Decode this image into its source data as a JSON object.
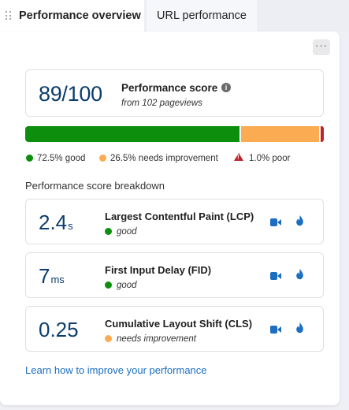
{
  "tabs": [
    {
      "label": "Performance overview",
      "active": true
    },
    {
      "label": "URL performance",
      "active": false
    }
  ],
  "more_label": "···",
  "score": {
    "value": "89/100",
    "title": "Performance score",
    "subtitle": "from 102 pageviews"
  },
  "distribution": {
    "good_pct": 72.5,
    "needs_improvement_pct": 26.5,
    "poor_pct": 1.0,
    "good_label": "72.5% good",
    "needs_improvement_label": "26.5% needs improvement",
    "poor_label": "1.0% poor"
  },
  "colors": {
    "good": "#0d8f0d",
    "needs_improvement": "#fbac52",
    "poor": "#c0222b",
    "value": "#0b3d6e",
    "link": "#1b6ec2"
  },
  "breakdown_title": "Performance score breakdown",
  "metrics": [
    {
      "value": "2.4",
      "unit": "s",
      "name": "Largest Contentful Paint (LCP)",
      "status": "good",
      "status_color": "#0d8f0d",
      "icons": [
        "video-icon",
        "flame-icon"
      ]
    },
    {
      "value": "7",
      "unit": "ms",
      "name": "First Input Delay (FID)",
      "status": "good",
      "status_color": "#0d8f0d",
      "icons": [
        "video-icon",
        "flame-icon"
      ]
    },
    {
      "value": "0.25",
      "unit": "",
      "name": "Cumulative Layout Shift (CLS)",
      "status": "needs improvement",
      "status_color": "#fbac52",
      "icons": [
        "video-icon",
        "flame-icon"
      ]
    }
  ],
  "learn_link": "Learn how to improve your performance"
}
